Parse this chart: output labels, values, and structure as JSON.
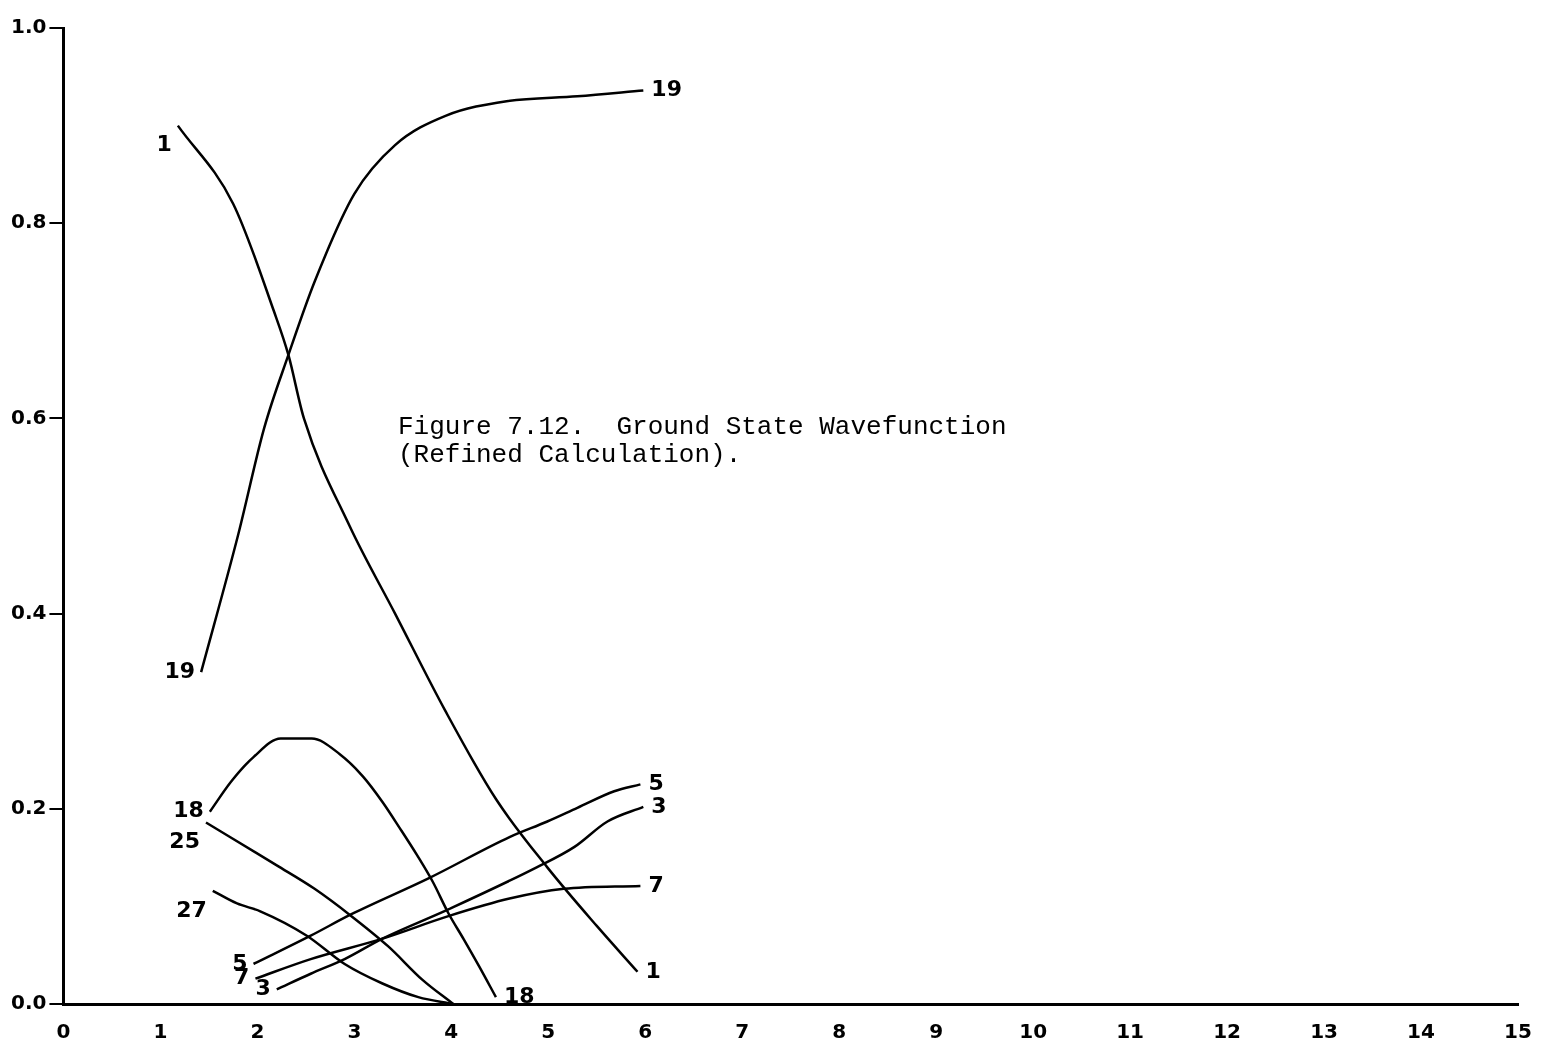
{
  "chart_data": {
    "type": "line",
    "title": "Figure 7.12.  Ground State Wavefunction (Refined Calculation).",
    "xlim": [
      0,
      15
    ],
    "xticks": [
      0,
      1,
      2,
      3,
      4,
      5,
      6,
      7,
      8,
      9,
      10,
      11,
      12,
      13,
      14,
      15
    ],
    "ylim": [
      0,
      1
    ],
    "yticks": [
      {
        "value": 0,
        "label": "0.0"
      },
      {
        "value": 0.2,
        "label": "0.2"
      },
      {
        "value": 0.4,
        "label": "0.4"
      },
      {
        "value": 0.6,
        "label": "0.6"
      },
      {
        "value": 0.8,
        "label": "0.8"
      },
      {
        "value": 1,
        "label": "1.0"
      }
    ],
    "grid": false,
    "legend": false,
    "marker": "none",
    "series": [
      {
        "name": "1",
        "color": "#000000",
        "x": [
          1.18,
          1.75,
          2.17,
          2.32,
          2.48,
          2.95,
          3.42,
          3.94,
          4.46,
          4.99,
          5.5,
          5.92
        ],
        "values": [
          0.9,
          0.82,
          0.71,
          0.665,
          0.6,
          0.49,
          0.4,
          0.3,
          0.21,
          0.14,
          0.08,
          0.033
        ]
      },
      {
        "name": "19",
        "color": "#000000",
        "x": [
          1.42,
          1.8,
          2.07,
          2.32,
          2.59,
          3.0,
          3.42,
          3.94,
          4.57,
          5.3,
          5.98
        ],
        "values": [
          0.34,
          0.48,
          0.59,
          0.665,
          0.74,
          0.83,
          0.88,
          0.91,
          0.925,
          0.93,
          0.936
        ]
      },
      {
        "name": "18",
        "color": "#000000",
        "x": [
          1.51,
          1.73,
          1.96,
          2.24,
          2.56,
          2.85,
          3.09,
          3.29,
          3.47,
          3.65,
          3.81,
          3.97,
          4.13,
          4.29,
          4.46
        ],
        "values": [
          0.197,
          0.228,
          0.253,
          0.272,
          0.272,
          0.256,
          0.233,
          0.207,
          0.18,
          0.152,
          0.125,
          0.093,
          0.066,
          0.038,
          0.007
        ]
      },
      {
        "name": "25",
        "color": "#000000",
        "x": [
          1.47,
          2.2,
          2.59,
          2.97,
          3.35,
          3.7,
          4.02
        ],
        "values": [
          0.186,
          0.142,
          0.118,
          0.09,
          0.059,
          0.025,
          0.0
        ]
      },
      {
        "name": "27",
        "color": "#000000",
        "x": [
          1.54,
          1.79,
          2.03,
          2.51,
          2.9,
          3.29,
          3.66,
          4.02
        ],
        "values": [
          0.116,
          0.103,
          0.095,
          0.07,
          0.041,
          0.021,
          0.007,
          0.0
        ]
      },
      {
        "name": "5",
        "color": "#000000",
        "x": [
          1.96,
          2.55,
          2.97,
          3.77,
          4.6,
          4.99,
          5.3,
          5.68,
          5.95
        ],
        "values": [
          0.041,
          0.07,
          0.092,
          0.129,
          0.171,
          0.187,
          0.201,
          0.218,
          0.225
        ]
      },
      {
        "name": "3",
        "color": "#000000",
        "x": [
          2.2,
          2.55,
          2.9,
          3.29,
          3.97,
          4.88,
          5.27,
          5.61,
          5.98
        ],
        "values": [
          0.015,
          0.031,
          0.046,
          0.067,
          0.097,
          0.14,
          0.161,
          0.187,
          0.202
        ]
      },
      {
        "name": "7",
        "color": "#000000",
        "x": [
          1.98,
          2.55,
          3.29,
          3.97,
          4.6,
          5.16,
          5.95
        ],
        "values": [
          0.026,
          0.046,
          0.067,
          0.09,
          0.108,
          0.118,
          0.121
        ]
      }
    ]
  }
}
